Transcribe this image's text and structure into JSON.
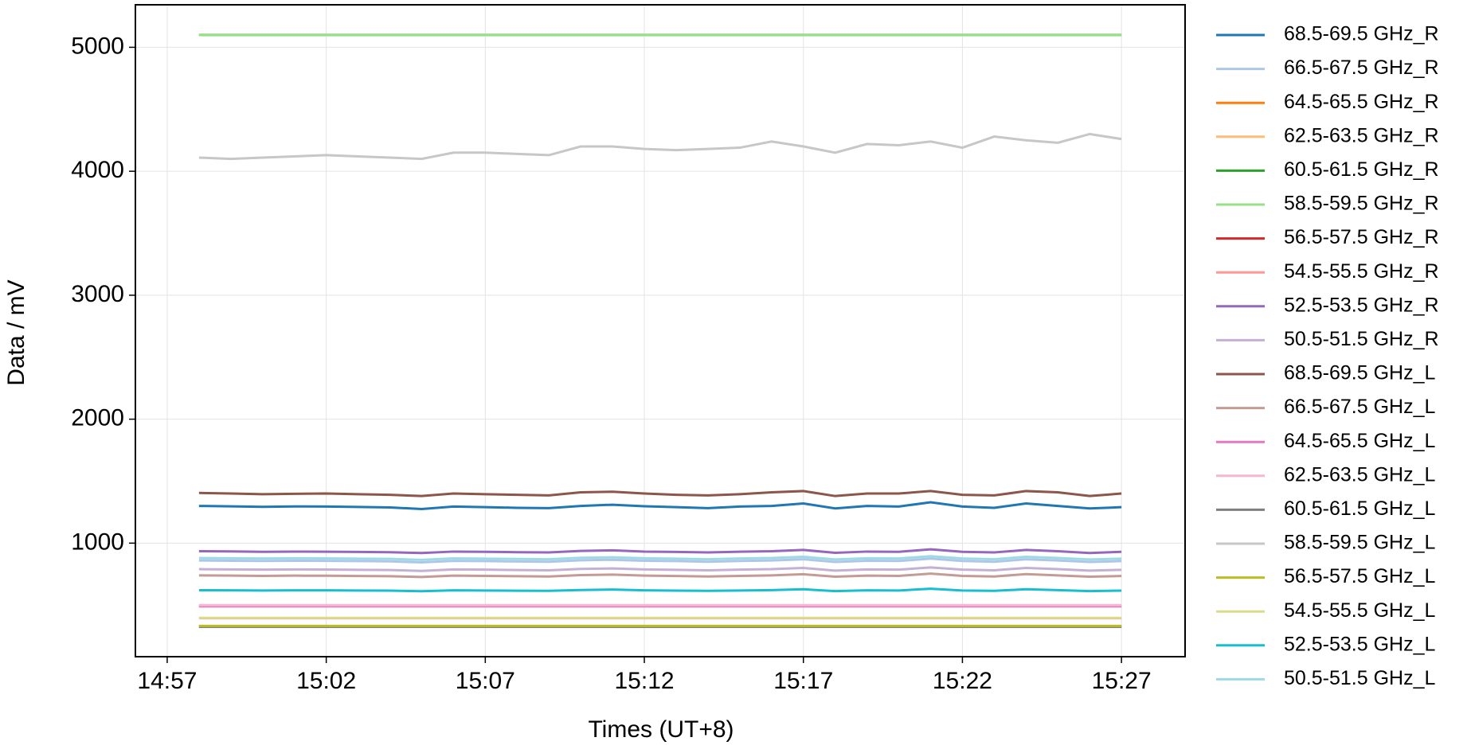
{
  "chart_data": {
    "type": "line",
    "xlabel": "Times (UT+8)",
    "ylabel": "Data / mV",
    "x": [
      "14:58",
      "14:59",
      "15:00",
      "15:01",
      "15:02",
      "15:03",
      "15:04",
      "15:05",
      "15:06",
      "15:07",
      "15:08",
      "15:09",
      "15:10",
      "15:11",
      "15:12",
      "15:13",
      "15:14",
      "15:15",
      "15:16",
      "15:17",
      "15:18",
      "15:19",
      "15:20",
      "15:21",
      "15:22",
      "15:23",
      "15:24",
      "15:25",
      "15:26",
      "15:27"
    ],
    "xlim": [
      "14:56",
      "15:29"
    ],
    "xticks": [
      "14:57",
      "15:02",
      "15:07",
      "15:12",
      "15:17",
      "15:22",
      "15:27"
    ],
    "ylim": [
      84,
      5343
    ],
    "yticks": [
      1000,
      2000,
      3000,
      4000,
      5000
    ],
    "grid": true,
    "series": [
      {
        "name": "68.5-69.5 GHz_R",
        "color": "#1f77b4",
        "values": [
          1300,
          1297,
          1293,
          1296,
          1295,
          1292,
          1288,
          1275,
          1295,
          1290,
          1285,
          1282,
          1300,
          1310,
          1298,
          1290,
          1282,
          1295,
          1300,
          1320,
          1280,
          1300,
          1295,
          1330,
          1295,
          1285,
          1320,
          1300,
          1280,
          1290
        ]
      },
      {
        "name": "66.5-67.5 GHz_R",
        "color": "#aec7e8",
        "values": [
          860,
          858,
          856,
          858,
          857,
          855,
          853,
          845,
          857,
          855,
          852,
          850,
          862,
          866,
          858,
          855,
          850,
          856,
          860,
          870,
          848,
          858,
          856,
          875,
          856,
          850,
          870,
          860,
          848,
          855
        ]
      },
      {
        "name": "64.5-65.5 GHz_R",
        "color": "#ff7f0e",
        "values": [
          492,
          492,
          492,
          492,
          492,
          492,
          492,
          492,
          492,
          492,
          492,
          492,
          492,
          492,
          492,
          492,
          492,
          492,
          492,
          492,
          492,
          492,
          492,
          492,
          492,
          492,
          492,
          492,
          492,
          492
        ]
      },
      {
        "name": "62.5-63.5 GHz_R",
        "color": "#ffbb78",
        "values": [
          496,
          496,
          496,
          496,
          496,
          496,
          496,
          496,
          496,
          496,
          496,
          496,
          496,
          496,
          496,
          496,
          496,
          496,
          496,
          496,
          496,
          496,
          496,
          496,
          496,
          496,
          496,
          496,
          496,
          496
        ]
      },
      {
        "name": "60.5-61.5 GHz_R",
        "color": "#2ca02c",
        "values": [
          5100,
          5100,
          5100,
          5100,
          5100,
          5100,
          5100,
          5100,
          5100,
          5100,
          5100,
          5100,
          5100,
          5100,
          5100,
          5100,
          5100,
          5100,
          5100,
          5100,
          5100,
          5100,
          5100,
          5100,
          5100,
          5100,
          5100,
          5100,
          5100,
          5100
        ]
      },
      {
        "name": "58.5-59.5 GHz_R",
        "color": "#98df8a",
        "values": [
          5100,
          5100,
          5100,
          5100,
          5100,
          5100,
          5100,
          5100,
          5100,
          5100,
          5100,
          5100,
          5100,
          5100,
          5100,
          5100,
          5100,
          5100,
          5100,
          5100,
          5100,
          5100,
          5100,
          5100,
          5100,
          5100,
          5100,
          5100,
          5100,
          5100
        ]
      },
      {
        "name": "56.5-57.5 GHz_R",
        "color": "#d62728",
        "values": [
          330,
          330,
          330,
          330,
          330,
          330,
          330,
          330,
          330,
          330,
          330,
          330,
          330,
          330,
          330,
          330,
          330,
          330,
          330,
          330,
          330,
          330,
          330,
          330,
          330,
          330,
          330,
          330,
          330,
          330
        ]
      },
      {
        "name": "54.5-55.5 GHz_R",
        "color": "#ff9896",
        "values": [
          395,
          395,
          395,
          395,
          395,
          395,
          395,
          395,
          395,
          395,
          395,
          395,
          395,
          395,
          395,
          395,
          395,
          395,
          395,
          395,
          395,
          395,
          395,
          395,
          395,
          395,
          395,
          395,
          395,
          395
        ]
      },
      {
        "name": "52.5-53.5 GHz_R",
        "color": "#9467bd",
        "values": [
          935,
          933,
          930,
          932,
          931,
          929,
          927,
          920,
          932,
          930,
          927,
          925,
          937,
          942,
          932,
          929,
          925,
          931,
          935,
          945,
          922,
          932,
          930,
          950,
          930,
          925,
          945,
          935,
          920,
          930
        ]
      },
      {
        "name": "50.5-51.5 GHz_R",
        "color": "#c5b0d5",
        "values": [
          790,
          788,
          786,
          788,
          787,
          785,
          783,
          776,
          788,
          786,
          783,
          781,
          792,
          796,
          788,
          785,
          781,
          786,
          790,
          800,
          778,
          788,
          786,
          804,
          786,
          781,
          800,
          790,
          778,
          785
        ]
      },
      {
        "name": "68.5-69.5 GHz_L",
        "color": "#8c564b",
        "values": [
          1405,
          1400,
          1395,
          1398,
          1400,
          1395,
          1390,
          1380,
          1400,
          1395,
          1390,
          1385,
          1410,
          1415,
          1400,
          1390,
          1385,
          1395,
          1410,
          1420,
          1380,
          1400,
          1400,
          1420,
          1390,
          1385,
          1420,
          1410,
          1380,
          1400
        ]
      },
      {
        "name": "66.5-67.5 GHz_L",
        "color": "#c49c94",
        "values": [
          740,
          738,
          736,
          738,
          737,
          735,
          733,
          727,
          738,
          736,
          733,
          731,
          742,
          746,
          738,
          735,
          731,
          736,
          740,
          749,
          729,
          738,
          736,
          754,
          736,
          731,
          750,
          740,
          729,
          735
        ]
      },
      {
        "name": "64.5-65.5 GHz_L",
        "color": "#e377c2",
        "values": [
          490,
          490,
          490,
          490,
          490,
          490,
          490,
          490,
          490,
          490,
          490,
          490,
          490,
          490,
          490,
          490,
          490,
          490,
          490,
          490,
          490,
          490,
          490,
          490,
          490,
          490,
          490,
          490,
          490,
          490
        ]
      },
      {
        "name": "62.5-63.5 GHz_L",
        "color": "#f7b6d2",
        "values": [
          500,
          500,
          500,
          500,
          500,
          500,
          500,
          500,
          500,
          500,
          500,
          500,
          500,
          500,
          500,
          500,
          500,
          500,
          500,
          500,
          500,
          500,
          500,
          500,
          500,
          500,
          500,
          500,
          500,
          500
        ]
      },
      {
        "name": "60.5-61.5 GHz_L",
        "color": "#7f7f7f",
        "values": [
          325,
          325,
          325,
          325,
          325,
          325,
          325,
          325,
          325,
          325,
          325,
          325,
          325,
          325,
          325,
          325,
          325,
          325,
          325,
          325,
          325,
          325,
          325,
          325,
          325,
          325,
          325,
          325,
          325,
          325
        ]
      },
      {
        "name": "58.5-59.5 GHz_L",
        "color": "#c7c7c7",
        "values": [
          4110,
          4100,
          4110,
          4120,
          4130,
          4120,
          4110,
          4100,
          4150,
          4150,
          4140,
          4130,
          4200,
          4200,
          4180,
          4170,
          4180,
          4190,
          4240,
          4200,
          4150,
          4220,
          4210,
          4240,
          4190,
          4280,
          4250,
          4230,
          4300,
          4260
        ]
      },
      {
        "name": "56.5-57.5 GHz_L",
        "color": "#bcbd22",
        "values": [
          332,
          332,
          332,
          332,
          332,
          332,
          332,
          332,
          332,
          332,
          332,
          332,
          332,
          332,
          332,
          332,
          332,
          332,
          332,
          332,
          332,
          332,
          332,
          332,
          332,
          332,
          332,
          332,
          332,
          332
        ]
      },
      {
        "name": "54.5-55.5 GHz_L",
        "color": "#dbdb8d",
        "values": [
          397,
          397,
          397,
          397,
          397,
          397,
          397,
          397,
          397,
          397,
          397,
          397,
          397,
          397,
          397,
          397,
          397,
          397,
          397,
          397,
          397,
          397,
          397,
          397,
          397,
          397,
          397,
          397,
          397,
          397
        ]
      },
      {
        "name": "52.5-53.5 GHz_L",
        "color": "#17becf",
        "values": [
          620,
          619,
          618,
          619,
          619,
          618,
          617,
          612,
          619,
          618,
          616,
          615,
          622,
          626,
          619,
          617,
          615,
          618,
          621,
          628,
          613,
          619,
          618,
          632,
          618,
          615,
          628,
          621,
          613,
          617
        ]
      },
      {
        "name": "50.5-51.5 GHz_L",
        "color": "#9edae5",
        "values": [
          880,
          878,
          876,
          878,
          877,
          875,
          873,
          865,
          877,
          875,
          872,
          870,
          882,
          886,
          878,
          875,
          870,
          876,
          880,
          890,
          868,
          878,
          876,
          895,
          876,
          870,
          890,
          880,
          868,
          875
        ]
      }
    ]
  }
}
